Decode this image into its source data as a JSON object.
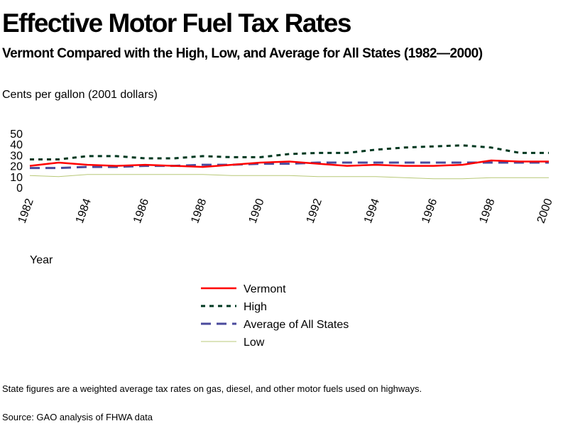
{
  "header": {
    "title": "Effective Motor Fuel Tax Rates",
    "subtitle": "Vermont Compared with the High, Low, and Average for All States (1982—2000)",
    "units": "Cents per gallon   (2001 dollars)"
  },
  "footer": {
    "note": "State figures are a weighted average tax rates on gas, diesel, and other motor fuels used on highways.",
    "source": "Source: GAO analysis of FHWA data"
  },
  "chart_data": {
    "type": "line",
    "xlabel": "Year",
    "ylabel": "Cents per gallon   (2001 dollars)",
    "x": [
      1982,
      1983,
      1984,
      1985,
      1986,
      1987,
      1988,
      1989,
      1990,
      1991,
      1992,
      1993,
      1994,
      1995,
      1996,
      1997,
      1998,
      1999,
      2000
    ],
    "xticks": [
      "1982",
      "1984",
      "1986",
      "1988",
      "1990",
      "1992",
      "1994",
      "1996",
      "1998",
      "2000"
    ],
    "yticks": [
      "0",
      "10",
      "20",
      "30",
      "40",
      "50"
    ],
    "ylim": [
      0,
      50
    ],
    "xlim": [
      1982,
      2000
    ],
    "grid": false,
    "legend": "below",
    "series": [
      {
        "name": "Vermont",
        "color": "#ff0000",
        "style": "solid",
        "values": [
          20,
          23,
          21,
          20,
          21,
          20,
          19,
          21,
          23,
          24,
          22,
          20,
          21,
          20,
          20,
          21,
          25,
          24,
          24
        ]
      },
      {
        "name": "High",
        "color": "#003820",
        "style": "dotted",
        "values": [
          26,
          26,
          29,
          29,
          27,
          27,
          29,
          28,
          28,
          31,
          32,
          32,
          35,
          37,
          38,
          39,
          37,
          32,
          32
        ]
      },
      {
        "name": "Average of All States",
        "color": "#4a4a9c",
        "style": "dashed",
        "values": [
          18,
          18,
          19,
          19,
          20,
          20,
          21,
          21,
          22,
          22,
          23,
          23,
          23,
          23,
          23,
          23,
          23,
          23,
          23
        ]
      },
      {
        "name": "Low",
        "color": "#b8c878",
        "style": "solid-thin",
        "values": [
          11,
          10,
          12,
          12,
          12,
          12,
          12,
          11,
          11,
          11,
          10,
          10,
          10,
          9,
          8,
          8,
          9,
          9,
          9
        ]
      }
    ]
  }
}
